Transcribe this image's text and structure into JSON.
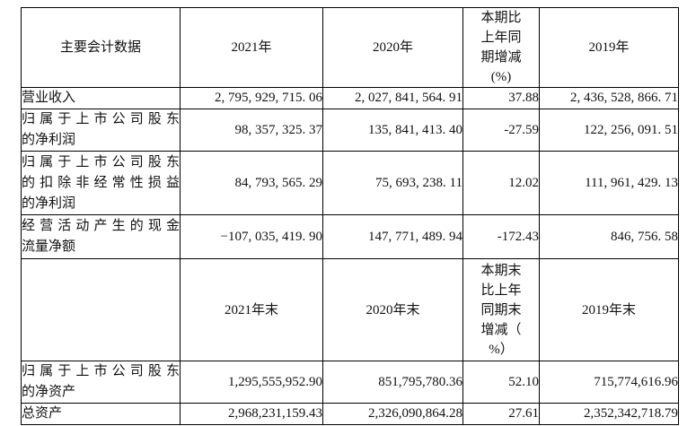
{
  "colors": {
    "border": "#000000",
    "text": "#111111",
    "background": "#ffffff"
  },
  "table": {
    "s1": {
      "header": {
        "metric": "主要会计数据",
        "y2021": "2021年",
        "y2020": "2020年",
        "pct_lines": [
          "本期比",
          "上年同",
          "期增减",
          "(%)"
        ],
        "y2019": "2019年"
      },
      "rows": [
        {
          "label_lines": [
            "营业收入"
          ],
          "v2021": "2, 795, 929, 715. 06",
          "v2020": "2, 027, 841, 564. 91",
          "pct": "37.88",
          "v2019": "2, 436, 528, 866. 71"
        },
        {
          "label_lines": [
            "归属于上市公司股东",
            "的净利润"
          ],
          "v2021": "98, 357, 325. 37",
          "v2020": "135, 841, 413. 40",
          "pct": "-27.59",
          "v2019": "122, 256, 091. 51"
        },
        {
          "label_lines": [
            "归属于上市公司股东",
            "的扣除非经常性损益",
            "的净利润"
          ],
          "v2021": "84, 793, 565. 29",
          "v2020": "75, 693, 238. 11",
          "pct": "12.02",
          "v2019": "111, 961, 429. 13"
        },
        {
          "label_lines": [
            "经营活动产生的现金",
            "流量净额"
          ],
          "v2021": "−107, 035, 419. 90",
          "v2020": "147, 771, 489. 94",
          "pct": "-172.43",
          "v2019": "846, 756. 58"
        }
      ]
    },
    "s2": {
      "header": {
        "metric": "",
        "y2021": "2021年末",
        "y2020": "2020年末",
        "pct_lines": [
          "本期末",
          "比上年",
          "同期末",
          "增减（",
          "%）"
        ],
        "y2019": "2019年末"
      },
      "rows": [
        {
          "label_lines": [
            "归属于上市公司股东",
            "的净资产"
          ],
          "v2021": "1,295,555,952.90",
          "v2020": "851,795,780.36",
          "pct": "52.10",
          "v2019": "715,774,616.96"
        },
        {
          "label_lines": [
            "总资产"
          ],
          "v2021": "2,968,231,159.43",
          "v2020": "2,326,090,864.28",
          "pct": "27.61",
          "v2019": "2,352,342,718.79"
        }
      ]
    }
  }
}
